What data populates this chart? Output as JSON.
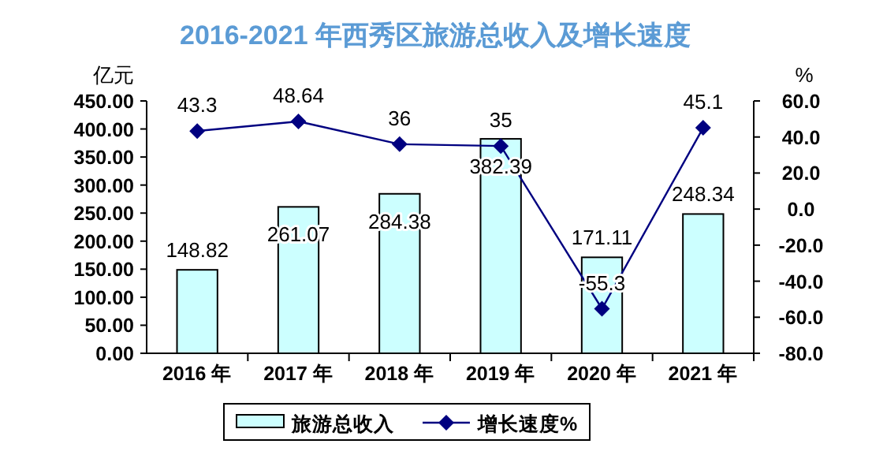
{
  "chart_data": {
    "type": "bar",
    "title": "2016-2021 年西秀区旅游总收入及增长速度",
    "ylabel": "亿元",
    "y2label": "%",
    "categories": [
      "2016 年",
      "2017 年",
      "2018 年",
      "2019 年",
      "2020 年",
      "2021 年"
    ],
    "series": [
      {
        "name": "旅游总收入",
        "color": "#ccffff",
        "values": [
          148.82,
          261.07,
          284.38,
          382.39,
          171.11,
          248.34
        ]
      },
      {
        "name": "增长速度%",
        "type": "line",
        "axis": "y2",
        "color": "#000080",
        "values": [
          43.3,
          48.64,
          36,
          35,
          -55.3,
          45.1
        ]
      }
    ],
    "ylim": [
      0,
      450
    ],
    "yticks": [
      {
        "value": 0,
        "label": "0.00"
      },
      {
        "value": 50,
        "label": "50.00"
      },
      {
        "value": 100,
        "label": "100.00"
      },
      {
        "value": 150,
        "label": "150.00"
      },
      {
        "value": 200,
        "label": "200.00"
      },
      {
        "value": 250,
        "label": "250.00"
      },
      {
        "value": 300,
        "label": "300.00"
      },
      {
        "value": 350,
        "label": "350.00"
      },
      {
        "value": 400,
        "label": "400.00"
      },
      {
        "value": 450,
        "label": "450.00"
      }
    ],
    "y2lim": [
      -80,
      60
    ],
    "y2ticks": [
      {
        "value": -80,
        "label": "-80.0"
      },
      {
        "value": -60,
        "label": "-60.0"
      },
      {
        "value": -40,
        "label": "-40.0"
      },
      {
        "value": -20,
        "label": "-20.0"
      },
      {
        "value": 0,
        "label": "0.0"
      },
      {
        "value": 20,
        "label": "20.0"
      },
      {
        "value": 40,
        "label": "40.0"
      },
      {
        "value": 60,
        "label": "60.0"
      }
    ],
    "marker": "diamond",
    "data_labels": true,
    "legend": "bottom",
    "grid": false
  }
}
